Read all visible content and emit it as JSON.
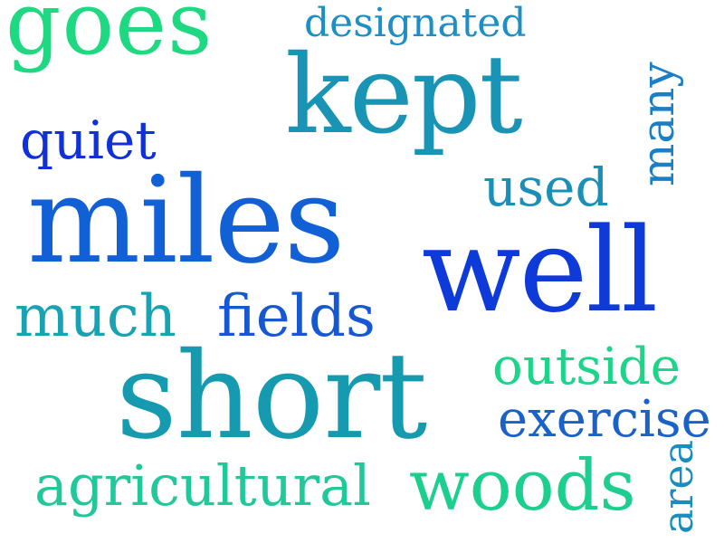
{
  "words": {
    "goes": {
      "text": "goes",
      "color": "#1fd882"
    },
    "designated": {
      "text": "designated",
      "color": "#1d8fc4"
    },
    "kept": {
      "text": "kept",
      "color": "#1a94b4"
    },
    "many": {
      "text": "many",
      "color": "#1a7fc7"
    },
    "quiet": {
      "text": "quiet",
      "color": "#1030d8"
    },
    "used": {
      "text": "used",
      "color": "#1a8fb8"
    },
    "miles": {
      "text": "miles",
      "color": "#1160d6"
    },
    "well": {
      "text": "well",
      "color": "#0d3ad8"
    },
    "much": {
      "text": "much",
      "color": "#18a2b2"
    },
    "fields": {
      "text": "fields",
      "color": "#1558d2"
    },
    "outside": {
      "text": "outside",
      "color": "#1cd48a"
    },
    "short": {
      "text": "short",
      "color": "#159aaf"
    },
    "exercise": {
      "text": "exercise",
      "color": "#1a62c8"
    },
    "agricultural": {
      "text": "agricultural",
      "color": "#22c79a"
    },
    "woods": {
      "text": "woods",
      "color": "#1ccf8e"
    },
    "area": {
      "text": "area",
      "color": "#1a8dbf"
    }
  }
}
